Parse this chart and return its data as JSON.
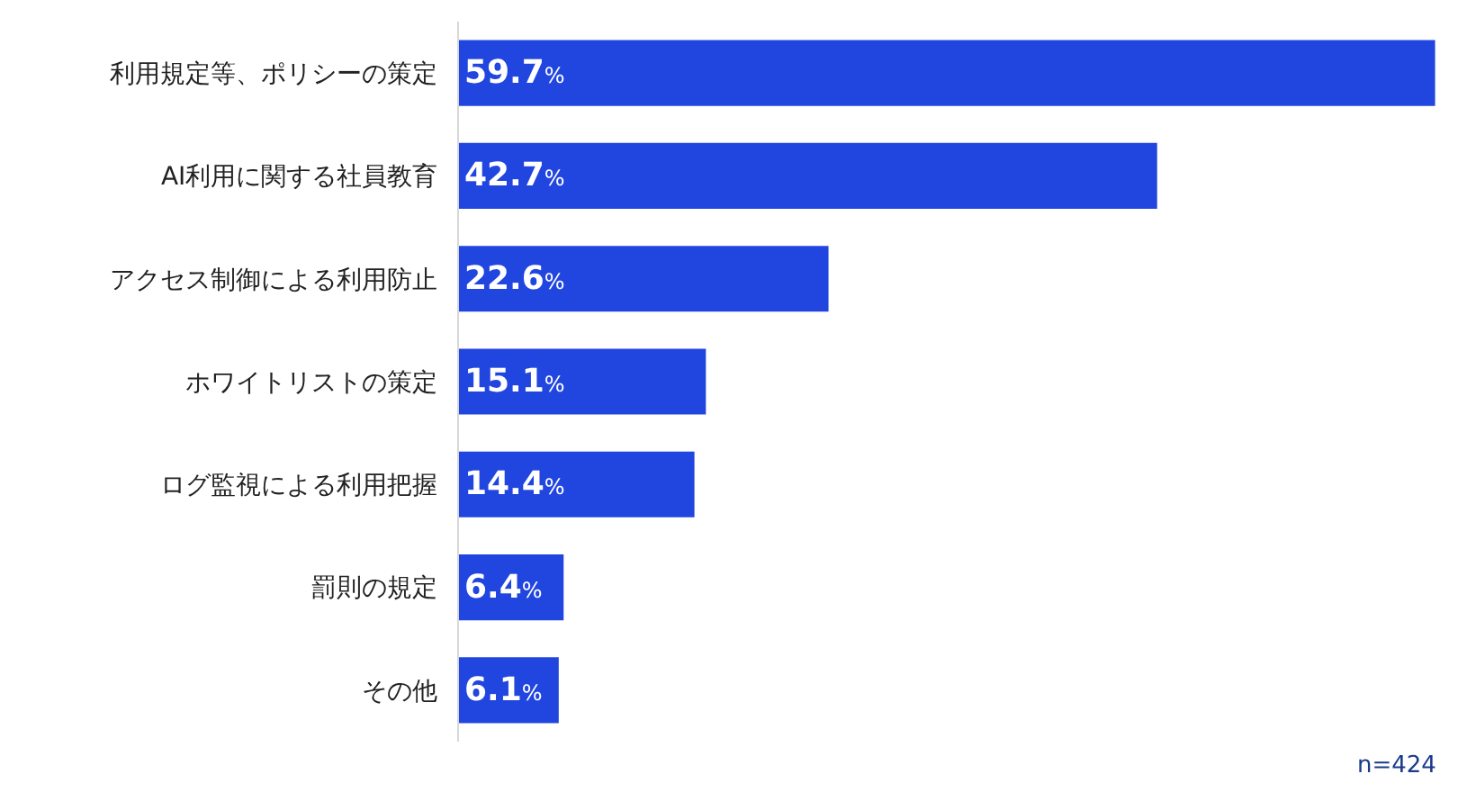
{
  "chart_data": {
    "type": "bar",
    "orientation": "horizontal",
    "categories": [
      "利用規定等、ポリシーの策定",
      "AI利用に関する社員教育",
      "アクセス制御による利用防止",
      "ホワイトリストの策定",
      "ログ監視による利用把握",
      "罰則の規定",
      "その他"
    ],
    "values": [
      59.7,
      42.7,
      22.6,
      15.1,
      14.4,
      6.4,
      6.1
    ],
    "value_labels": [
      "59.7%",
      "42.7%",
      "22.6%",
      "15.1%",
      "14.4%",
      "6.4%",
      "6.1%"
    ],
    "color": "#2146e0",
    "xlim": [
      0,
      60
    ],
    "grid": false,
    "legend": false,
    "annotations": [
      "n=424"
    ]
  }
}
